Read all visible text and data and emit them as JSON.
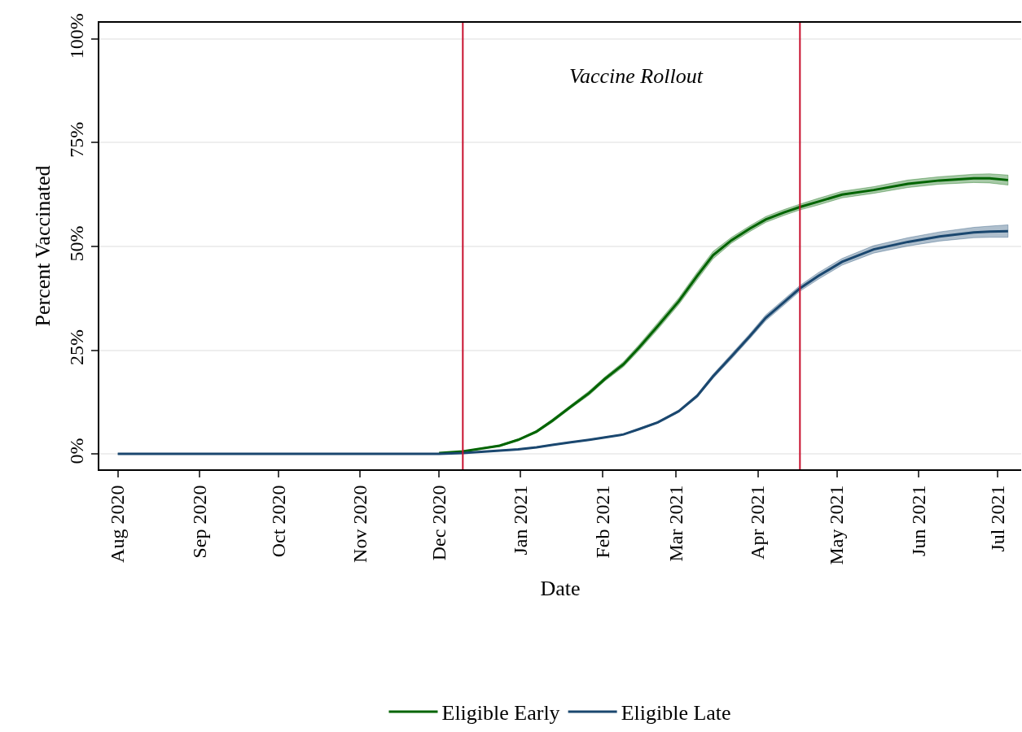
{
  "chart_data": {
    "type": "line",
    "xlabel": "Date",
    "ylabel": "Percent Vaccinated",
    "x": [
      "2020-08-01",
      "2020-09-01",
      "2020-10-01",
      "2020-11-01",
      "2020-12-01",
      "2020-12-10",
      "2020-12-17",
      "2020-12-24",
      "2020-12-31",
      "2021-01-07",
      "2021-01-13",
      "2021-01-20",
      "2021-01-27",
      "2021-02-02",
      "2021-02-09",
      "2021-02-15",
      "2021-02-22",
      "2021-03-02",
      "2021-03-09",
      "2021-03-15",
      "2021-03-22",
      "2021-03-29",
      "2021-04-04",
      "2021-04-11",
      "2021-04-17",
      "2021-04-24",
      "2021-05-03",
      "2021-05-15",
      "2021-05-28",
      "2021-06-09",
      "2021-06-22",
      "2021-06-28",
      "2021-07-05"
    ],
    "series": [
      {
        "name": "Eligible Early",
        "color": "#006400",
        "values": [
          null,
          null,
          null,
          null,
          0.2,
          0.6,
          1.3,
          2,
          3.4,
          5.4,
          8,
          11.4,
          14.7,
          18.1,
          21.6,
          25.7,
          30.8,
          36.8,
          42.9,
          47.9,
          51.5,
          54.3,
          56.5,
          58.2,
          59.5,
          60.8,
          62.5,
          63.6,
          65.1,
          65.9,
          66.4,
          66.4,
          66
        ],
        "lower": [
          null,
          null,
          null,
          null,
          0.2,
          0.5,
          1.2,
          1.8,
          3.2,
          5.1,
          7.6,
          11,
          14.2,
          17.6,
          21,
          25,
          30,
          36,
          42,
          47,
          50.8,
          53.6,
          55.8,
          57.5,
          58.8,
          60,
          61.7,
          62.8,
          64.2,
          65,
          65.4,
          65.3,
          64.8
        ],
        "upper": [
          null,
          null,
          null,
          null,
          0.2,
          0.7,
          1.4,
          2.2,
          3.6,
          5.7,
          8.4,
          11.8,
          15.2,
          18.6,
          22.2,
          26.4,
          31.6,
          37.6,
          43.8,
          48.8,
          52.2,
          55,
          57.2,
          58.9,
          60.2,
          61.6,
          63.3,
          64.4,
          66,
          66.8,
          67.4,
          67.5,
          67.2
        ]
      },
      {
        "name": "Eligible Late",
        "color": "#1a476f",
        "values": [
          0,
          0,
          0,
          0,
          0,
          0.2,
          0.5,
          0.8,
          1.1,
          1.6,
          2.2,
          2.8,
          3.4,
          4,
          4.7,
          6,
          7.6,
          10.3,
          14,
          18.7,
          23.5,
          28.4,
          32.8,
          36.6,
          39.9,
          42.9,
          46.3,
          49.3,
          51.1,
          52.4,
          53.4,
          53.6,
          53.7
        ],
        "lower": [
          0,
          0,
          0,
          0,
          0,
          0.2,
          0.5,
          0.7,
          1,
          1.5,
          2.1,
          2.7,
          3.3,
          3.9,
          4.6,
          5.8,
          7.4,
          10,
          13.6,
          18.2,
          22.9,
          27.8,
          32.1,
          35.9,
          39.2,
          42.1,
          45.5,
          48.4,
          50.1,
          51.3,
          52.1,
          52.2,
          52.2
        ],
        "upper": [
          0,
          0,
          0,
          0,
          0,
          0.2,
          0.5,
          0.9,
          1.2,
          1.7,
          2.3,
          2.9,
          3.5,
          4.1,
          4.8,
          6.2,
          7.8,
          10.6,
          14.4,
          19.2,
          24.1,
          29,
          33.5,
          37.3,
          40.6,
          43.7,
          47.1,
          50.2,
          52.1,
          53.5,
          54.6,
          54.9,
          55.2
        ]
      }
    ],
    "xlim": [
      "2020-07-25",
      "2021-07-10"
    ],
    "xticks": [
      {
        "value": "2020-08-01",
        "label": "Aug 2020"
      },
      {
        "value": "2020-09-01",
        "label": "Sep 2020"
      },
      {
        "value": "2020-10-01",
        "label": "Oct 2020"
      },
      {
        "value": "2020-11-01",
        "label": "Nov 2020"
      },
      {
        "value": "2020-12-01",
        "label": "Dec 2020"
      },
      {
        "value": "2021-01-01",
        "label": "Jan 2021"
      },
      {
        "value": "2021-02-01",
        "label": "Feb 2021"
      },
      {
        "value": "2021-03-01",
        "label": "Mar 2021"
      },
      {
        "value": "2021-04-01",
        "label": "Apr 2021"
      },
      {
        "value": "2021-05-01",
        "label": "May 2021"
      },
      {
        "value": "2021-06-01",
        "label": "Jun 2021"
      },
      {
        "value": "2021-07-01",
        "label": "Jul 2021"
      }
    ],
    "ylim": [
      -3.7,
      103.9
    ],
    "yticks": [
      {
        "value": 0,
        "label": "0%"
      },
      {
        "value": 25,
        "label": "25%"
      },
      {
        "value": 50,
        "label": "50%"
      },
      {
        "value": 75,
        "label": "75%"
      },
      {
        "value": 100,
        "label": "100%"
      }
    ],
    "grid": "y",
    "legend": "bottom",
    "ref_lines": [
      {
        "axis": "x",
        "value": "2020-12-10",
        "color": "#c8102e"
      },
      {
        "axis": "x",
        "value": "2021-04-17",
        "color": "#c8102e"
      }
    ],
    "annotations": [
      "Vaccine Rollout"
    ]
  }
}
